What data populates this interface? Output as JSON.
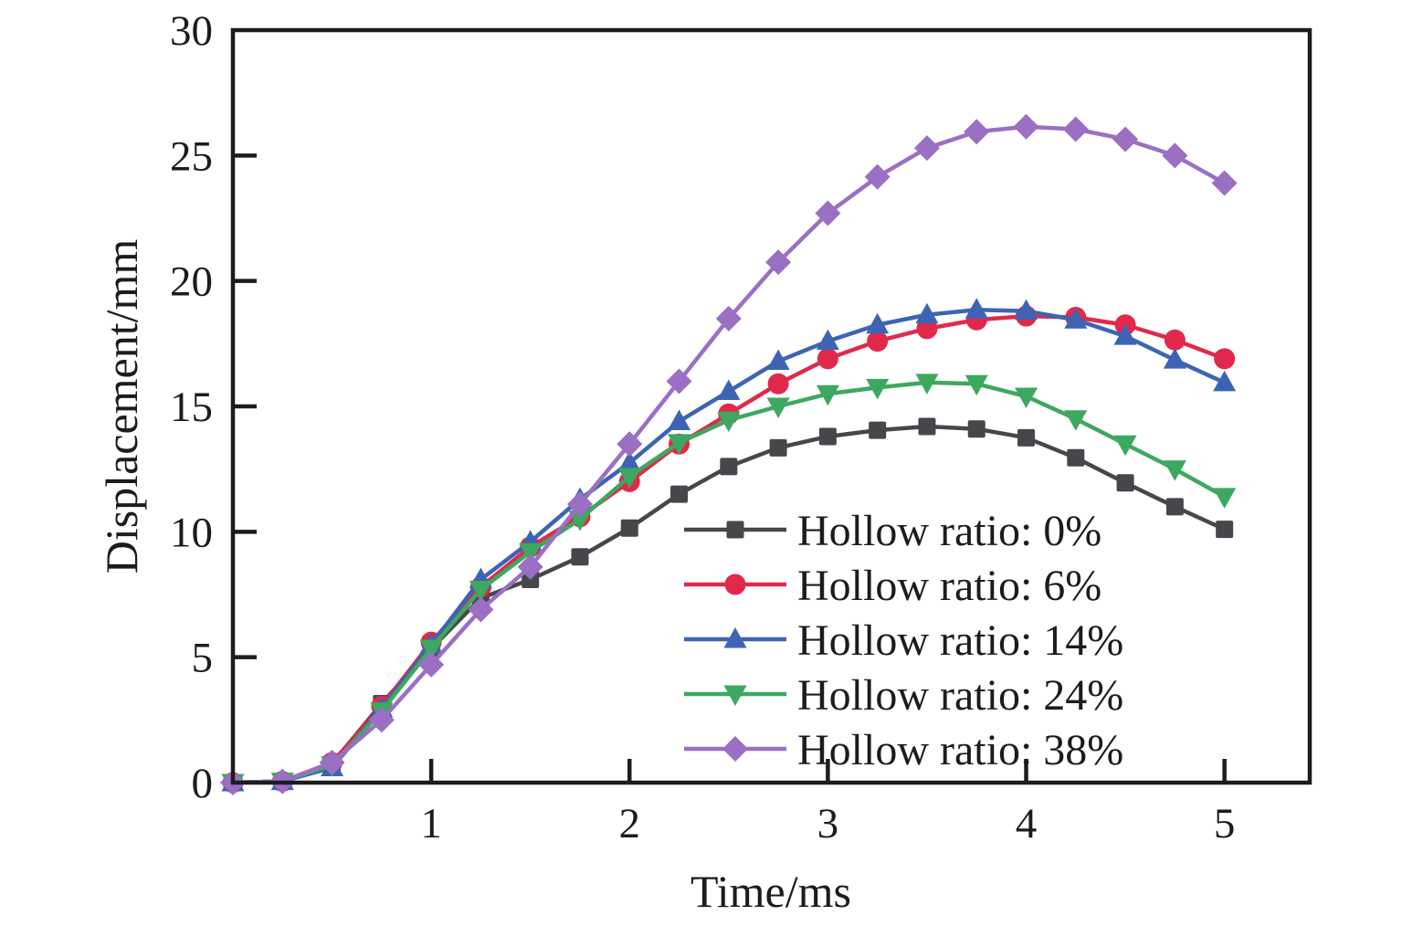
{
  "chart_data": {
    "type": "line",
    "title": "",
    "xlabel": "Time/ms",
    "ylabel": "Displacement/mm",
    "xlim": [
      0,
      5.43
    ],
    "ylim": [
      0,
      30
    ],
    "x_ticks": [
      1,
      2,
      3,
      4,
      5
    ],
    "y_ticks": [
      0,
      5,
      10,
      15,
      20,
      25,
      30
    ],
    "grid": false,
    "frame": true,
    "frame_color": "#1c1c1c",
    "background_color": "#ffffff",
    "legend_position": "inside-lower-right",
    "x": [
      0,
      0.25,
      0.5,
      0.75,
      1,
      1.25,
      1.5,
      1.75,
      2,
      2.25,
      2.5,
      2.75,
      3,
      3.25,
      3.5,
      3.75,
      4,
      4.25,
      4.5,
      4.75,
      5
    ],
    "series": [
      {
        "name": "Hollow ratio: 0%",
        "color": "#47474b",
        "marker": "square",
        "values": [
          0,
          0.05,
          0.75,
          3.15,
          5.35,
          7.35,
          8.1,
          9.0,
          10.15,
          11.5,
          12.6,
          13.35,
          13.8,
          14.05,
          14.2,
          14.1,
          13.75,
          12.95,
          11.95,
          11.0,
          10.1
        ]
      },
      {
        "name": "Hollow ratio: 6%",
        "color": "#e0294b",
        "marker": "circle",
        "values": [
          0,
          0.05,
          0.8,
          3.05,
          5.6,
          7.8,
          9.4,
          10.6,
          12.0,
          13.5,
          14.7,
          15.9,
          16.9,
          17.6,
          18.1,
          18.45,
          18.6,
          18.55,
          18.25,
          17.65,
          16.9
        ]
      },
      {
        "name": "Hollow ratio: 14%",
        "color": "#3d64b4",
        "marker": "triangle-up",
        "values": [
          0,
          0.05,
          0.6,
          2.95,
          5.5,
          8.1,
          9.6,
          11.3,
          12.75,
          14.4,
          15.6,
          16.8,
          17.6,
          18.25,
          18.65,
          18.85,
          18.8,
          18.45,
          17.8,
          16.85,
          15.95
        ]
      },
      {
        "name": "Hollow ratio: 24%",
        "color": "#3da860",
        "marker": "triangle-down",
        "values": [
          0,
          0.05,
          0.7,
          2.85,
          5.35,
          7.7,
          9.2,
          10.5,
          12.2,
          13.55,
          14.45,
          15.0,
          15.5,
          15.75,
          15.95,
          15.9,
          15.4,
          14.5,
          13.5,
          12.5,
          11.4
        ]
      },
      {
        "name": "Hollow ratio: 38%",
        "color": "#9a6fc4",
        "marker": "diamond",
        "values": [
          0,
          0.05,
          0.8,
          2.5,
          4.7,
          6.9,
          8.6,
          11.1,
          13.5,
          16.0,
          18.5,
          20.75,
          22.7,
          24.15,
          25.3,
          25.95,
          26.15,
          26.05,
          25.65,
          25.0,
          23.9
        ]
      }
    ]
  }
}
